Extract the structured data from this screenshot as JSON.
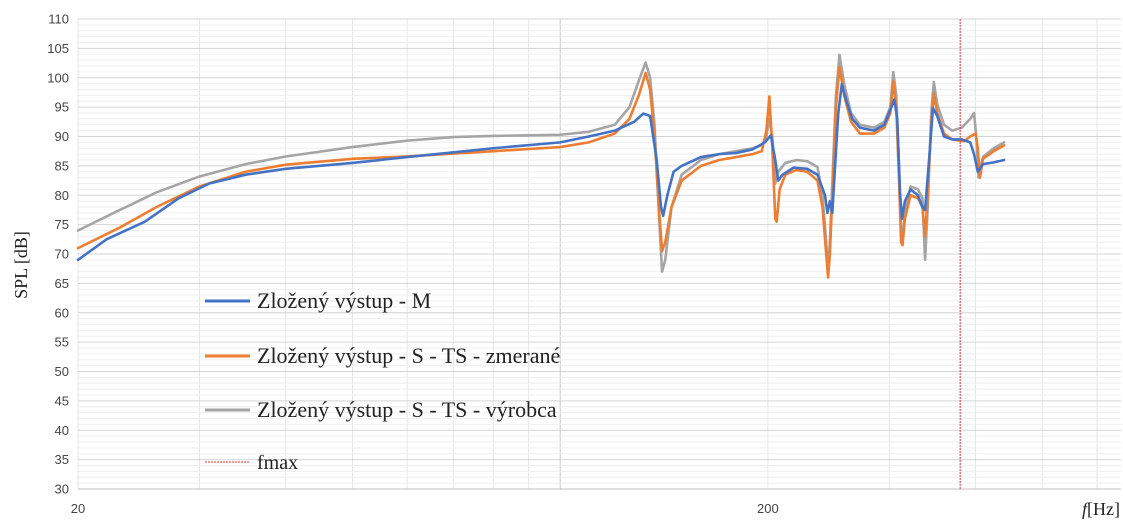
{
  "chart_data": {
    "type": "line",
    "ylabel": "SPL [dB]",
    "xlabel_var": "f",
    "xlabel_unit": "[Hz]",
    "x_scale": "log",
    "xlim": [
      20,
      650
    ],
    "ylim": [
      30,
      110
    ],
    "y_ticks": [
      30,
      35,
      40,
      45,
      50,
      55,
      60,
      65,
      70,
      75,
      80,
      85,
      90,
      95,
      100,
      105,
      110
    ],
    "x_ticks": [
      20,
      200
    ],
    "grid": true,
    "legend_position": "lower-left",
    "series": [
      {
        "name": "Zložený výstup - M",
        "color": "#4472C4",
        "points": [
          [
            20,
            69
          ],
          [
            22,
            72.5
          ],
          [
            25,
            75.5
          ],
          [
            28,
            79.5
          ],
          [
            31,
            82
          ],
          [
            35,
            83.5
          ],
          [
            40,
            84.5
          ],
          [
            50,
            85.5
          ],
          [
            60,
            86.5
          ],
          [
            80,
            88
          ],
          [
            100,
            89
          ],
          [
            110,
            90
          ],
          [
            120,
            91
          ],
          [
            128,
            92.5
          ],
          [
            132,
            93.9
          ],
          [
            135,
            93.5
          ],
          [
            138,
            86
          ],
          [
            140,
            78
          ],
          [
            141,
            76.5
          ],
          [
            143,
            80
          ],
          [
            146,
            84
          ],
          [
            150,
            85
          ],
          [
            160,
            86.5
          ],
          [
            170,
            87
          ],
          [
            180,
            87.2
          ],
          [
            190,
            87.8
          ],
          [
            198,
            89
          ],
          [
            202,
            90.2
          ],
          [
            205,
            86
          ],
          [
            207,
            82.5
          ],
          [
            210,
            83.5
          ],
          [
            218,
            84.7
          ],
          [
            228,
            84.5
          ],
          [
            236,
            83.5
          ],
          [
            242,
            80
          ],
          [
            244,
            77
          ],
          [
            246,
            79
          ],
          [
            248,
            77
          ],
          [
            250,
            84
          ],
          [
            253,
            94
          ],
          [
            256,
            98.9
          ],
          [
            260,
            96
          ],
          [
            265,
            93
          ],
          [
            272,
            91.5
          ],
          [
            285,
            91
          ],
          [
            295,
            92
          ],
          [
            302,
            95
          ],
          [
            305,
            96.3
          ],
          [
            308,
            93
          ],
          [
            311,
            80
          ],
          [
            313,
            76
          ],
          [
            316,
            79
          ],
          [
            322,
            81
          ],
          [
            330,
            80
          ],
          [
            335,
            78
          ],
          [
            338,
            77.5
          ],
          [
            342,
            85
          ],
          [
            347,
            94.8
          ],
          [
            352,
            93.5
          ],
          [
            360,
            90
          ],
          [
            370,
            89.5
          ],
          [
            382,
            89.5
          ],
          [
            393,
            89
          ],
          [
            398,
            87
          ],
          [
            403,
            84
          ],
          [
            410,
            85.3
          ],
          [
            425,
            85.6
          ],
          [
            440,
            86
          ]
        ]
      },
      {
        "name": "Zložený výstup - S - TS - zmerané",
        "color": "#ED7D31",
        "points": [
          [
            20,
            71
          ],
          [
            23,
            74.5
          ],
          [
            26,
            78
          ],
          [
            30,
            81.5
          ],
          [
            35,
            84
          ],
          [
            40,
            85.2
          ],
          [
            50,
            86.2
          ],
          [
            60,
            86.6
          ],
          [
            80,
            87.5
          ],
          [
            100,
            88.2
          ],
          [
            110,
            89
          ],
          [
            120,
            90.5
          ],
          [
            126,
            93
          ],
          [
            130,
            97
          ],
          [
            133,
            100.8
          ],
          [
            135,
            98
          ],
          [
            137,
            90
          ],
          [
            139,
            78
          ],
          [
            140.5,
            70.5
          ],
          [
            142,
            72
          ],
          [
            145,
            78
          ],
          [
            150,
            82.5
          ],
          [
            160,
            85
          ],
          [
            170,
            86
          ],
          [
            180,
            86.5
          ],
          [
            190,
            87
          ],
          [
            196,
            87.5
          ],
          [
            199,
            91
          ],
          [
            201,
            96.8
          ],
          [
            203,
            88
          ],
          [
            205,
            76
          ],
          [
            206,
            75.5
          ],
          [
            208,
            81
          ],
          [
            212,
            83.5
          ],
          [
            220,
            84.3
          ],
          [
            228,
            84
          ],
          [
            236,
            82.5
          ],
          [
            240,
            78
          ],
          [
            243,
            70
          ],
          [
            244.5,
            66
          ],
          [
            246,
            70
          ],
          [
            248,
            80
          ],
          [
            251,
            95
          ],
          [
            254,
            101.8
          ],
          [
            258,
            97
          ],
          [
            264,
            92.5
          ],
          [
            272,
            90.5
          ],
          [
            285,
            90.5
          ],
          [
            295,
            91.5
          ],
          [
            301,
            94
          ],
          [
            304,
            99.4
          ],
          [
            307,
            95
          ],
          [
            310,
            82
          ],
          [
            312,
            72
          ],
          [
            313.5,
            71.5
          ],
          [
            316,
            76
          ],
          [
            322,
            80
          ],
          [
            330,
            79.5
          ],
          [
            335,
            78
          ],
          [
            338,
            73
          ],
          [
            341,
            80
          ],
          [
            345,
            92
          ],
          [
            348,
            97.3
          ],
          [
            352,
            94
          ],
          [
            360,
            90.5
          ],
          [
            370,
            89.5
          ],
          [
            385,
            89.2
          ],
          [
            393,
            90
          ],
          [
            400,
            90.5
          ],
          [
            403,
            88
          ],
          [
            406,
            83
          ],
          [
            410,
            86.2
          ],
          [
            425,
            87.5
          ],
          [
            440,
            88.5
          ]
        ]
      },
      {
        "name": "Zložený výstup - S - TS - výrobca",
        "color": "#A5A5A5",
        "points": [
          [
            20,
            74
          ],
          [
            23,
            77.5
          ],
          [
            26,
            80.5
          ],
          [
            30,
            83.2
          ],
          [
            35,
            85.3
          ],
          [
            40,
            86.6
          ],
          [
            50,
            88.2
          ],
          [
            60,
            89.3
          ],
          [
            70,
            89.9
          ],
          [
            80,
            90.1
          ],
          [
            100,
            90.3
          ],
          [
            110,
            90.8
          ],
          [
            120,
            92
          ],
          [
            126,
            95
          ],
          [
            130,
            99.5
          ],
          [
            133,
            102.6
          ],
          [
            135,
            100
          ],
          [
            137,
            92
          ],
          [
            139,
            77
          ],
          [
            140.5,
            67
          ],
          [
            142,
            69
          ],
          [
            145,
            78
          ],
          [
            150,
            83.5
          ],
          [
            160,
            86
          ],
          [
            170,
            87
          ],
          [
            180,
            87.5
          ],
          [
            190,
            88
          ],
          [
            196,
            88.5
          ],
          [
            199,
            90
          ],
          [
            201,
            93
          ],
          [
            203,
            90
          ],
          [
            205,
            82
          ],
          [
            207,
            84
          ],
          [
            212,
            85.5
          ],
          [
            220,
            86
          ],
          [
            228,
            85.8
          ],
          [
            236,
            84.8
          ],
          [
            240,
            80
          ],
          [
            243,
            72
          ],
          [
            244.5,
            67
          ],
          [
            246,
            72
          ],
          [
            248,
            82
          ],
          [
            251,
            97
          ],
          [
            254,
            103.9
          ],
          [
            258,
            99
          ],
          [
            264,
            94
          ],
          [
            272,
            92
          ],
          [
            285,
            91.5
          ],
          [
            295,
            92.5
          ],
          [
            301,
            95
          ],
          [
            304,
            101
          ],
          [
            307,
            97
          ],
          [
            310,
            84
          ],
          [
            312,
            74
          ],
          [
            313.5,
            72.5
          ],
          [
            316,
            77
          ],
          [
            322,
            81.5
          ],
          [
            330,
            81
          ],
          [
            335,
            79.5
          ],
          [
            338,
            69
          ],
          [
            341,
            78
          ],
          [
            345,
            94
          ],
          [
            348,
            99.3
          ],
          [
            352,
            95.5
          ],
          [
            360,
            92
          ],
          [
            370,
            91
          ],
          [
            382,
            91.5
          ],
          [
            393,
            93
          ],
          [
            398,
            94
          ],
          [
            401,
            90
          ],
          [
            404,
            83
          ],
          [
            410,
            86.5
          ],
          [
            425,
            88
          ],
          [
            440,
            89
          ]
        ]
      }
    ],
    "fmax": {
      "name": "fmax",
      "x": 380,
      "color": "#E03030"
    }
  }
}
